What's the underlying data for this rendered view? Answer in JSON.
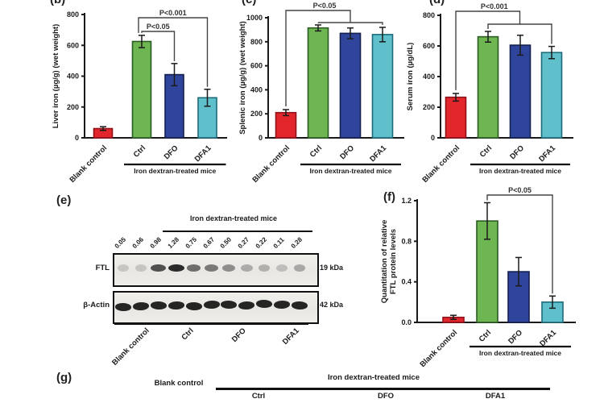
{
  "panel_letters": {
    "b": "(b)",
    "c": "(c)",
    "d": "(d)",
    "e": "(e)",
    "f": "(f)",
    "g": "(g)"
  },
  "colors": {
    "bar_fills": [
      "#e2262c",
      "#6db652",
      "#2f459c",
      "#5fc0cc"
    ],
    "bar_strokes": [
      "#8f1318",
      "#2b5b22",
      "#15204f",
      "#1d6b79"
    ],
    "axis": "#1a1a1a"
  },
  "chart_data": [
    {
      "id": "b",
      "type": "bar",
      "ylabel": "Liver iron (µg/g) (wet weight)",
      "categories": [
        "Blank control",
        "Ctrl",
        "DFO",
        "DFA1"
      ],
      "values": [
        60,
        625,
        410,
        260
      ],
      "errors": [
        12,
        40,
        72,
        55
      ],
      "ylim": [
        0,
        800
      ],
      "yticks": [
        0,
        200,
        400,
        600,
        800
      ],
      "ytick_labels": [
        "0",
        "200",
        "400",
        "600",
        "800"
      ],
      "group_label": "Iron dextran-treated mice",
      "grid": false,
      "legend": "none",
      "significance": [
        {
          "style": "pair",
          "a": 1,
          "b": 2,
          "label": "P<0.05"
        },
        {
          "style": "pair",
          "a": 1,
          "b": 3,
          "label": "P<0.001"
        }
      ]
    },
    {
      "id": "c",
      "type": "bar",
      "ylabel": "Splenic iron (µg/g) (wet weight)",
      "categories": [
        "Blank control",
        "Ctrl",
        "DFO",
        "DFA1"
      ],
      "values": [
        210,
        915,
        870,
        860
      ],
      "errors": [
        25,
        25,
        45,
        60
      ],
      "ylim": [
        0,
        1000
      ],
      "yticks": [
        0,
        200,
        400,
        600,
        800,
        1000
      ],
      "ytick_labels": [
        "0",
        "200",
        "400",
        "600",
        "800",
        "1000"
      ],
      "group_label": "Iron dextran-treated mice",
      "grid": false,
      "legend": "none",
      "significance": [
        {
          "style": "blank_vs_group",
          "label": "P<0.05",
          "compare": "Blank control vs iron dextran-treated mice"
        }
      ]
    },
    {
      "id": "d",
      "type": "bar",
      "ylabel": "Serum iron (µg/dL)",
      "categories": [
        "Blank control",
        "Ctrl",
        "DFO",
        "DFA1"
      ],
      "values": [
        265,
        660,
        605,
        557
      ],
      "errors": [
        25,
        35,
        65,
        40
      ],
      "ylim": [
        0,
        800
      ],
      "yticks": [
        0,
        200,
        400,
        600,
        800
      ],
      "ytick_labels": [
        "0",
        "200",
        "400",
        "600",
        "800"
      ],
      "group_label": "Iron dextran-treated mice",
      "grid": false,
      "legend": "none",
      "significance": [
        {
          "style": "blank_vs_group",
          "label": "P<0.001",
          "compare": "Blank control vs iron dextran-treated mice"
        }
      ]
    },
    {
      "id": "f",
      "type": "bar",
      "ylabel": "Quantitation of relative FTL protein levels",
      "ylabel_lines": [
        "Quantitation of relative",
        "FTL protein levels"
      ],
      "categories": [
        "Blank control",
        "Ctrl",
        "DFO",
        "DFA1"
      ],
      "values": [
        0.05,
        1.0,
        0.5,
        0.2
      ],
      "errors": [
        0.02,
        0.18,
        0.14,
        0.06
      ],
      "ylim": [
        0,
        1.2
      ],
      "yticks": [
        0,
        0.4,
        0.8,
        1.2
      ],
      "ytick_labels": [
        "0.0",
        "0.4",
        "0.8",
        "1.2"
      ],
      "group_label": "Iron dextran-treated mice",
      "grid": false,
      "legend": "none",
      "significance": [
        {
          "style": "pair",
          "a": 1,
          "b": 3,
          "label": "P<0.05"
        }
      ]
    }
  ],
  "blot": {
    "header": "Iron dextran-treated mice",
    "lane_values": [
      "0.05",
      "0.06",
      "0.98",
      "1.28",
      "0.75",
      "0.67",
      "0.50",
      "0.27",
      "0.22",
      "0.11",
      "0.28"
    ],
    "rows": [
      {
        "label": "FTL",
        "kda": "19 kDa"
      },
      {
        "label": "β-Actin",
        "kda": "42 kDa"
      }
    ],
    "groups": [
      {
        "label": "Blank control",
        "lanes": 2
      },
      {
        "label": "Ctrl",
        "lanes": 3
      },
      {
        "label": "DFO",
        "lanes": 3
      },
      {
        "label": "DFA1",
        "lanes": 3
      }
    ]
  },
  "panel_g": {
    "blank_label": "Blank control",
    "header": "Iron dextran-treated mice",
    "columns": [
      "Ctrl",
      "DFO",
      "DFA1"
    ]
  }
}
